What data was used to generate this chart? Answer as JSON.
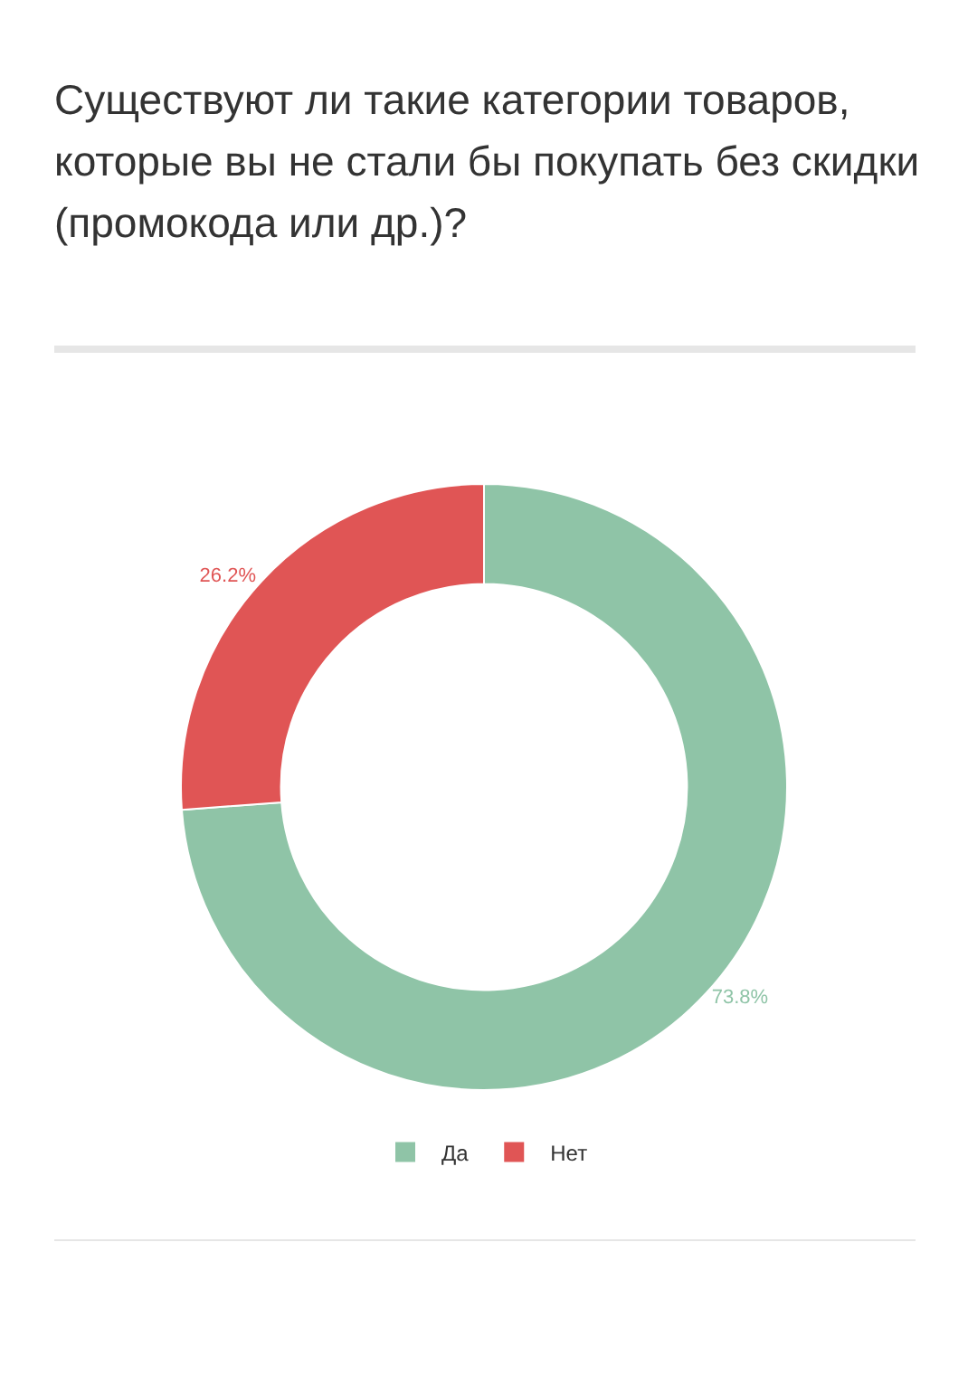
{
  "chart_data": {
    "type": "donut",
    "title": "Существуют ли такие категории товаров, которые вы не стали бы покупать без скидки (промокода или др.)?",
    "categories": [
      "Да",
      "Нет"
    ],
    "values": [
      73.8,
      26.2
    ],
    "colors": [
      "#8fc4a7",
      "#e05555"
    ],
    "value_labels": [
      "73.8%",
      "26.2%"
    ],
    "legend": "bottom"
  }
}
